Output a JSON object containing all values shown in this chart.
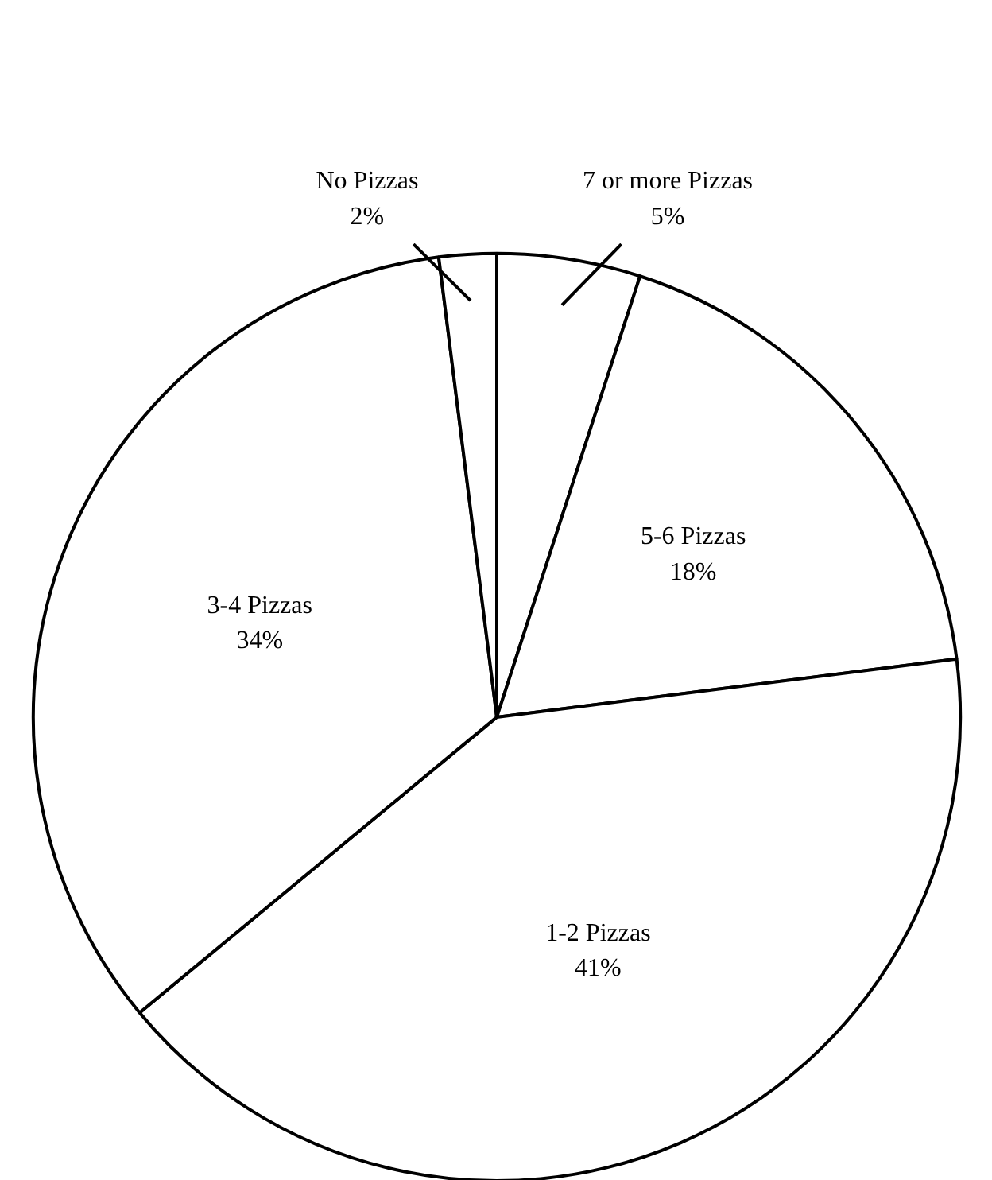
{
  "chart_data": {
    "type": "pie",
    "categories": [
      "7 or more Pizzas",
      "5-6 Pizzas",
      "1-2 Pizzas",
      "3-4 Pizzas",
      "No Pizzas"
    ],
    "values": [
      5,
      18,
      41,
      34,
      2
    ],
    "value_labels": [
      "5%",
      "18%",
      "41%",
      "34%",
      "2%"
    ],
    "colors": [
      "#ffffff",
      "#ffffff",
      "#ffffff",
      "#ffffff",
      "#ffffff"
    ],
    "legend": false
  }
}
